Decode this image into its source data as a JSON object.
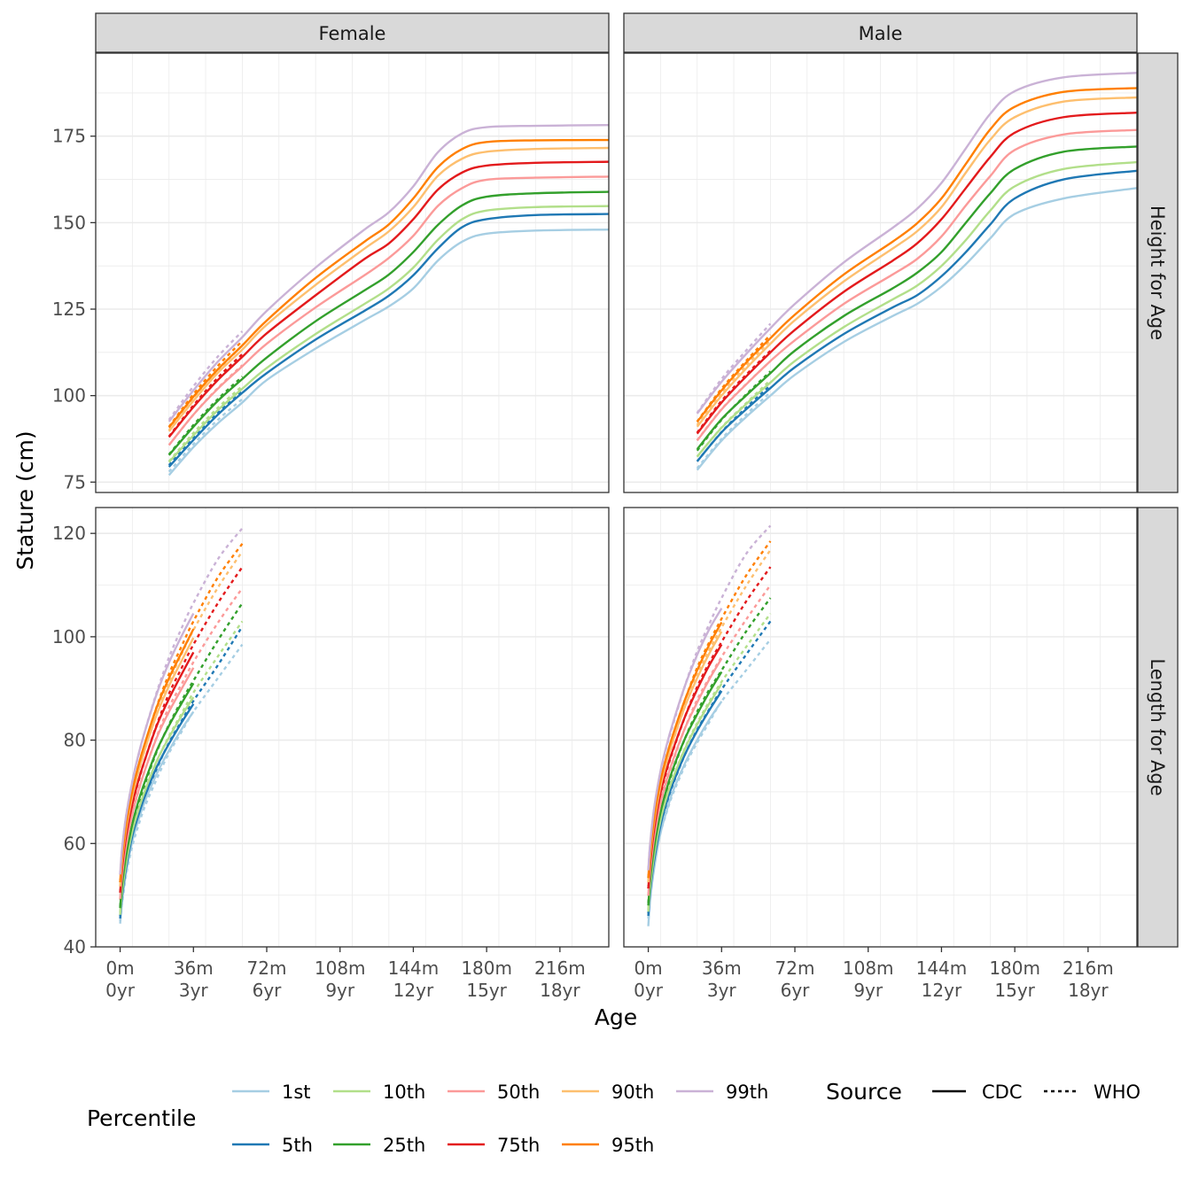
{
  "figure": {
    "x_title": "Age",
    "y_title": "Stature (cm)",
    "legend": {
      "percentile_title": "Percentile",
      "source_title": "Source",
      "sources": [
        {
          "label": "CDC",
          "linetype": "solid"
        },
        {
          "label": "WHO",
          "linetype": "dotted"
        }
      ]
    }
  },
  "chart_data": {
    "type": "line",
    "facets": {
      "columns": [
        "Female",
        "Male"
      ],
      "rows": [
        "Height for Age",
        "Length for Age"
      ]
    },
    "x_axis": {
      "label": "Age",
      "unit": "months",
      "ticks": [
        {
          "value": 0,
          "month_label": "0m",
          "year_label": "0yr"
        },
        {
          "value": 36,
          "month_label": "36m",
          "year_label": "3yr"
        },
        {
          "value": 72,
          "month_label": "72m",
          "year_label": "6yr"
        },
        {
          "value": 108,
          "month_label": "108m",
          "year_label": "9yr"
        },
        {
          "value": 144,
          "month_label": "144m",
          "year_label": "12yr"
        },
        {
          "value": 180,
          "month_label": "180m",
          "year_label": "15yr"
        },
        {
          "value": 216,
          "month_label": "216m",
          "year_label": "18yr"
        }
      ],
      "range": [
        -12,
        240
      ]
    },
    "y_axis": {
      "label": "Stature (cm)",
      "rows": [
        {
          "row": "Height for Age",
          "ticks": [
            75,
            100,
            125,
            150,
            175
          ],
          "range": [
            72,
            199
          ]
        },
        {
          "row": "Length for Age",
          "ticks": [
            40,
            60,
            80,
            100,
            120
          ],
          "range": [
            40,
            125
          ]
        }
      ]
    },
    "grid": true,
    "legend_position": "bottom",
    "percentiles": [
      {
        "label": "1st",
        "color": "#A6CEE3"
      },
      {
        "label": "5th",
        "color": "#1F78B4"
      },
      {
        "label": "10th",
        "color": "#B2DF8A"
      },
      {
        "label": "25th",
        "color": "#33A02C"
      },
      {
        "label": "50th",
        "color": "#FB9A99"
      },
      {
        "label": "75th",
        "color": "#E31A1C"
      },
      {
        "label": "90th",
        "color": "#FDBF6F"
      },
      {
        "label": "95th",
        "color": "#FF7F00"
      },
      {
        "label": "99th",
        "color": "#CAB2D6"
      }
    ],
    "height_x": [
      24,
      36,
      48,
      60,
      72,
      96,
      120,
      132,
      144,
      156,
      168,
      180,
      204,
      240
    ],
    "length_x": [
      0,
      1,
      3,
      6,
      9,
      12,
      18,
      24,
      30,
      36,
      48,
      60
    ],
    "panels": [
      {
        "sex": "Female",
        "measure": "Height for Age",
        "cdc_x_range": [
          24,
          240
        ],
        "who_x_range": [
          24,
          60
        ],
        "cdc": {
          "1st": [
            77.0,
            85.1,
            92.0,
            98.0,
            104.5,
            113.6,
            121.8,
            125.8,
            131.0,
            139.0,
            144.5,
            146.8,
            147.7,
            148.0
          ],
          "5th": [
            79.4,
            87.2,
            94.5,
            100.8,
            106.5,
            116.2,
            124.5,
            128.9,
            134.8,
            142.5,
            148.7,
            151.0,
            152.2,
            152.5
          ],
          "10th": [
            80.8,
            88.5,
            95.8,
            102.0,
            108.0,
            117.8,
            126.5,
            131.0,
            137.0,
            145.0,
            151.0,
            153.5,
            154.5,
            154.8
          ],
          "25th": [
            82.8,
            91.0,
            98.5,
            104.8,
            111.0,
            121.5,
            130.4,
            135.0,
            141.5,
            149.3,
            155.0,
            157.5,
            158.5,
            158.9
          ],
          "50th": [
            85.7,
            94.5,
            102.0,
            108.5,
            115.0,
            125.5,
            134.8,
            139.8,
            146.2,
            154.8,
            160.0,
            162.4,
            163.0,
            163.3
          ],
          "75th": [
            88.0,
            96.7,
            104.5,
            111.2,
            118.0,
            129.0,
            139.5,
            144.0,
            151.0,
            159.5,
            164.5,
            166.5,
            167.3,
            167.6
          ],
          "90th": [
            89.7,
            98.5,
            106.6,
            113.3,
            120.5,
            132.0,
            142.5,
            147.5,
            154.5,
            163.5,
            168.5,
            170.5,
            171.3,
            171.6
          ],
          "95th": [
            90.8,
            99.7,
            107.6,
            114.5,
            121.7,
            134.0,
            144.5,
            149.5,
            157.0,
            166.0,
            171.3,
            173.3,
            173.8,
            173.9
          ],
          "99th": [
            92.5,
            101.5,
            109.8,
            116.9,
            124.5,
            137.0,
            148.0,
            153.0,
            160.5,
            170.3,
            175.8,
            177.6,
            178.0,
            178.2
          ]
        },
        "who": {
          "1st": [
            78.0,
            86.0,
            93.0,
            99.0
          ],
          "5th": [
            79.9,
            88.0,
            95.0,
            101.2
          ],
          "10th": [
            81.0,
            89.2,
            96.5,
            102.8
          ],
          "25th": [
            83.0,
            91.5,
            99.0,
            105.5
          ],
          "50th": [
            85.7,
            94.5,
            102.2,
            108.8
          ],
          "75th": [
            88.2,
            97.2,
            105.2,
            112.0
          ],
          "90th": [
            90.0,
            99.2,
            107.3,
            114.5
          ],
          "95th": [
            91.0,
            100.4,
            108.6,
            115.8
          ],
          "99th": [
            93.0,
            102.7,
            111.3,
            118.6
          ]
        }
      },
      {
        "sex": "Male",
        "measure": "Height for Age",
        "cdc_x_range": [
          24,
          240
        ],
        "who_x_range": [
          24,
          60
        ],
        "cdc": {
          "1st": [
            78.5,
            87.0,
            93.8,
            100.0,
            106.0,
            115.5,
            123.0,
            126.5,
            131.5,
            138.0,
            145.5,
            152.5,
            157.0,
            160.0
          ],
          "5th": [
            81.0,
            89.4,
            96.0,
            102.2,
            108.2,
            117.8,
            125.5,
            129.0,
            134.5,
            141.5,
            149.5,
            157.0,
            162.5,
            165.0
          ],
          "10th": [
            82.4,
            90.7,
            97.5,
            103.8,
            110.0,
            119.8,
            127.8,
            131.8,
            137.5,
            145.0,
            153.5,
            160.5,
            165.5,
            167.5
          ],
          "25th": [
            84.5,
            93.2,
            100.0,
            106.5,
            113.0,
            123.0,
            131.0,
            135.5,
            141.5,
            150.0,
            158.5,
            165.5,
            170.5,
            172.0
          ],
          "50th": [
            87.0,
            96.0,
            103.2,
            110.0,
            116.0,
            126.5,
            135.0,
            139.5,
            146.0,
            155.0,
            163.5,
            171.0,
            175.5,
            176.8
          ],
          "75th": [
            89.0,
            98.0,
            105.5,
            112.5,
            119.0,
            130.0,
            139.0,
            144.0,
            151.0,
            160.0,
            169.0,
            176.0,
            180.5,
            181.8
          ],
          "90th": [
            91.0,
            100.0,
            107.8,
            115.0,
            121.8,
            133.0,
            142.5,
            147.5,
            154.5,
            164.5,
            174.0,
            180.5,
            185.0,
            186.2
          ],
          "95th": [
            92.4,
            101.5,
            109.5,
            116.6,
            123.4,
            135.0,
            144.5,
            149.8,
            157.0,
            167.0,
            177.0,
            183.5,
            187.8,
            188.9
          ],
          "99th": [
            94.8,
            104.0,
            112.0,
            119.5,
            126.5,
            138.5,
            148.5,
            154.0,
            161.5,
            171.5,
            181.5,
            188.0,
            192.0,
            193.3
          ]
        },
        "who": {
          "1st": [
            79.0,
            87.5,
            94.5,
            101.0
          ],
          "5th": [
            81.0,
            89.5,
            96.5,
            103.0
          ],
          "10th": [
            82.3,
            90.8,
            97.8,
            104.5
          ],
          "25th": [
            84.1,
            93.0,
            100.3,
            107.0
          ],
          "50th": [
            87.1,
            96.1,
            103.3,
            110.0
          ],
          "75th": [
            89.3,
            98.5,
            106.0,
            113.0
          ],
          "90th": [
            91.5,
            100.9,
            108.7,
            116.0
          ],
          "95th": [
            92.5,
            102.0,
            110.0,
            117.6
          ],
          "99th": [
            95.0,
            104.8,
            113.0,
            120.8
          ]
        }
      },
      {
        "sex": "Female",
        "measure": "Length for Age",
        "cdc_x_range": [
          0,
          36
        ],
        "who_x_range": [
          0,
          60
        ],
        "cdc": {
          "1st": [
            44.5,
            49.0,
            54.5,
            60.5,
            64.5,
            68.0,
            73.5,
            78.0,
            82.0,
            85.5
          ],
          "5th": [
            45.5,
            50.0,
            55.5,
            61.5,
            65.5,
            69.0,
            74.8,
            79.3,
            83.3,
            87.0
          ],
          "10th": [
            46.2,
            50.8,
            56.3,
            62.4,
            66.5,
            70.0,
            76.0,
            80.5,
            84.6,
            88.3
          ],
          "25th": [
            47.5,
            52.2,
            57.8,
            63.8,
            68.2,
            71.8,
            78.0,
            82.8,
            87.0,
            91.0
          ],
          "50th": [
            49.3,
            54.0,
            59.8,
            65.8,
            70.2,
            74.0,
            80.5,
            85.5,
            89.8,
            94.0
          ],
          "75th": [
            50.5,
            55.5,
            61.5,
            67.6,
            72.2,
            76.0,
            82.8,
            88.0,
            92.6,
            97.0
          ],
          "90th": [
            51.7,
            56.8,
            62.9,
            69.2,
            74.0,
            78.0,
            85.0,
            90.5,
            95.2,
            99.8
          ],
          "95th": [
            52.5,
            57.6,
            63.8,
            70.2,
            75.1,
            79.2,
            86.4,
            92.0,
            96.8,
            101.5
          ],
          "99th": [
            54.0,
            59.2,
            65.5,
            72.0,
            77.2,
            81.5,
            89.0,
            95.0,
            100.0,
            104.5
          ]
        },
        "who": {
          "1st": [
            45.0,
            48.5,
            54.0,
            59.5,
            63.5,
            67.0,
            72.5,
            77.5,
            81.5,
            85.5,
            92.0,
            98.5
          ],
          "5th": [
            46.0,
            49.8,
            55.3,
            60.9,
            65.0,
            68.6,
            74.5,
            79.5,
            83.6,
            87.6,
            94.5,
            102.0
          ],
          "10th": [
            46.7,
            50.5,
            56.0,
            61.8,
            66.0,
            69.7,
            75.8,
            80.8,
            85.0,
            89.2,
            96.2,
            103.0
          ],
          "25th": [
            47.8,
            51.8,
            57.5,
            63.2,
            67.5,
            71.3,
            77.8,
            83.0,
            87.5,
            91.5,
            99.3,
            106.5
          ],
          "50th": [
            49.1,
            53.7,
            59.8,
            65.7,
            70.1,
            74.0,
            80.7,
            86.4,
            90.7,
            95.1,
            102.7,
            109.4
          ],
          "75th": [
            50.5,
            55.3,
            61.5,
            67.5,
            72.0,
            76.0,
            83.0,
            89.0,
            93.8,
            98.5,
            106.5,
            113.5
          ],
          "90th": [
            51.7,
            56.5,
            63.0,
            69.0,
            73.8,
            78.0,
            85.3,
            91.3,
            96.5,
            101.3,
            109.5,
            116.5
          ],
          "95th": [
            52.5,
            57.3,
            63.8,
            70.0,
            74.8,
            79.0,
            86.5,
            92.8,
            98.0,
            103.0,
            111.5,
            118.0
          ],
          "99th": [
            54.0,
            59.0,
            65.5,
            72.0,
            77.0,
            81.5,
            89.3,
            96.0,
            101.5,
            106.5,
            115.0,
            121.0
          ]
        }
      },
      {
        "sex": "Male",
        "measure": "Length for Age",
        "cdc_x_range": [
          0,
          36
        ],
        "who_x_range": [
          0,
          60
        ],
        "cdc": {
          "1st": [
            44.0,
            49.5,
            55.5,
            62.0,
            66.3,
            70.0,
            75.5,
            80.0,
            84.0,
            87.5
          ],
          "5th": [
            46.0,
            51.0,
            57.0,
            63.5,
            68.0,
            71.5,
            77.2,
            81.8,
            85.8,
            89.5
          ],
          "10th": [
            46.8,
            51.8,
            58.0,
            64.5,
            69.0,
            72.5,
            78.3,
            83.0,
            87.1,
            90.9
          ],
          "25th": [
            48.0,
            53.3,
            59.5,
            66.0,
            70.5,
            74.3,
            80.3,
            85.0,
            89.3,
            93.2
          ],
          "50th": [
            49.9,
            55.0,
            61.4,
            67.8,
            72.3,
            76.0,
            82.3,
            87.3,
            91.8,
            95.8
          ],
          "75th": [
            51.3,
            56.5,
            63.0,
            69.7,
            74.3,
            78.0,
            84.5,
            89.8,
            94.5,
            98.5
          ],
          "90th": [
            52.5,
            57.8,
            64.4,
            71.1,
            75.8,
            79.8,
            86.5,
            92.0,
            96.8,
            101.0
          ],
          "95th": [
            53.3,
            58.6,
            65.3,
            72.1,
            76.9,
            80.9,
            87.8,
            93.5,
            98.5,
            102.8
          ],
          "99th": [
            54.8,
            60.3,
            67.2,
            74.0,
            79.0,
            83.2,
            90.5,
            96.5,
            101.5,
            105.5
          ]
        },
        "who": {
          "1st": [
            45.5,
            50.0,
            56.0,
            62.0,
            66.0,
            69.5,
            75.0,
            79.5,
            83.5,
            87.5,
            93.5,
            99.5
          ],
          "5th": [
            46.5,
            51.1,
            57.3,
            63.5,
            67.7,
            71.3,
            77.2,
            82.0,
            86.0,
            89.8,
            96.5,
            103.0
          ],
          "10th": [
            47.2,
            51.8,
            58.1,
            64.4,
            68.7,
            72.4,
            78.5,
            83.3,
            87.5,
            91.3,
            98.0,
            104.5
          ],
          "25th": [
            48.5,
            53.2,
            59.5,
            65.8,
            70.2,
            74.0,
            80.3,
            85.5,
            89.8,
            93.5,
            101.0,
            107.5
          ],
          "50th": [
            49.9,
            54.7,
            61.4,
            67.6,
            72.0,
            75.7,
            82.3,
            87.8,
            92.1,
            96.1,
            103.3,
            110.0
          ],
          "75th": [
            51.3,
            56.2,
            63.0,
            69.4,
            74.0,
            77.8,
            84.5,
            90.3,
            95.0,
            99.0,
            106.8,
            113.5
          ],
          "90th": [
            52.5,
            57.5,
            64.4,
            71.0,
            75.6,
            79.6,
            86.5,
            92.5,
            97.5,
            101.8,
            109.8,
            116.8
          ],
          "95th": [
            53.4,
            58.4,
            65.3,
            71.9,
            76.6,
            80.6,
            87.7,
            94.0,
            99.0,
            103.5,
            111.8,
            118.5
          ],
          "99th": [
            55.0,
            60.0,
            67.0,
            73.8,
            78.7,
            82.8,
            90.5,
            97.2,
            102.5,
            107.5,
            116.0,
            121.5
          ]
        }
      }
    ]
  }
}
